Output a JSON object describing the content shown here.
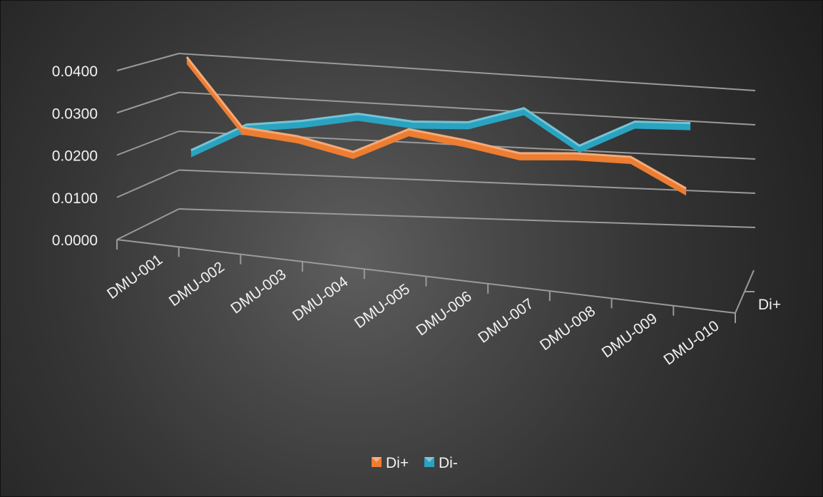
{
  "chart_data": {
    "type": "line",
    "subtype": "3d-line",
    "title": "",
    "xlabel": "",
    "ylabel": "",
    "categories": [
      "DMU-001",
      "DMU-002",
      "DMU-003",
      "DMU-004",
      "DMU-005",
      "DMU-006",
      "DMU-007",
      "DMU-008",
      "DMU-009",
      "DMU-010"
    ],
    "ylim": [
      0,
      0.04
    ],
    "y_ticks": [
      "0.0000",
      "0.0100",
      "0.0200",
      "0.0300",
      "0.0400"
    ],
    "depth_axis_label": "Di+",
    "grid": true,
    "legend_position": "bottom",
    "legend": [
      "Di+",
      "Di-"
    ],
    "series": [
      {
        "name": "Di+",
        "color": "#ed7d31",
        "values": [
          0.0362,
          0.022,
          0.0205,
          0.0176,
          0.0226,
          0.0207,
          0.0183,
          0.0186,
          0.0182,
          0.012
        ]
      },
      {
        "name": "Di-",
        "color": "#2aa3c0",
        "values": [
          0.0158,
          0.0214,
          0.0225,
          0.0243,
          0.023,
          0.0232,
          0.0264,
          0.019,
          0.0243,
          0.0243
        ]
      }
    ],
    "background": "dark-radial-gradient",
    "tick_color": "#f2f2f2",
    "grid_color": "#9a9a9a"
  }
}
